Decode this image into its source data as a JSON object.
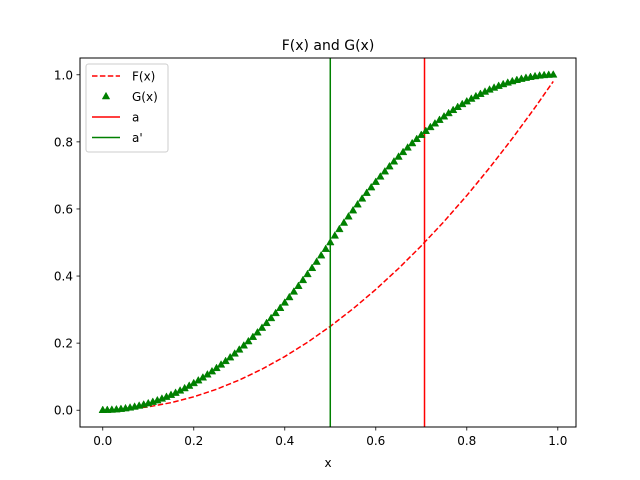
{
  "chart_data": {
    "type": "line",
    "title": "F(x) and G(x)",
    "xlabel": "x",
    "ylabel": "",
    "xlim": [
      -0.05,
      1.04
    ],
    "ylim": [
      -0.05,
      1.05
    ],
    "grid": false,
    "legend_position": "top-left",
    "xticks": [
      0.0,
      0.2,
      0.4,
      0.6,
      0.8,
      1.0
    ],
    "xtick_labels": [
      "0.0",
      "0.2",
      "0.4",
      "0.6",
      "0.8",
      "1.0"
    ],
    "yticks": [
      0.0,
      0.2,
      0.4,
      0.6,
      0.8,
      1.0
    ],
    "ytick_labels": [
      "0.0",
      "0.2",
      "0.4",
      "0.6",
      "0.8",
      "1.0"
    ],
    "series": [
      {
        "name": "F(x)",
        "kind": "line",
        "style": "dashed",
        "color": "#ff0000",
        "x": [
          0.0,
          0.05,
          0.1,
          0.15,
          0.2,
          0.25,
          0.3,
          0.35,
          0.4,
          0.45,
          0.5,
          0.55,
          0.6,
          0.65,
          0.7,
          0.75,
          0.8,
          0.85,
          0.9,
          0.95,
          0.99
        ],
        "y": [
          0.0,
          0.0025,
          0.01,
          0.0225,
          0.04,
          0.0625,
          0.09,
          0.1225,
          0.16,
          0.2025,
          0.25,
          0.3025,
          0.36,
          0.4225,
          0.49,
          0.5625,
          0.64,
          0.7225,
          0.81,
          0.9025,
          0.9801
        ]
      },
      {
        "name": "G(x)",
        "kind": "scatter",
        "marker": "triangle-up",
        "color": "#008000",
        "x": [
          0.0,
          0.01,
          0.02,
          0.03,
          0.04,
          0.05,
          0.06,
          0.07,
          0.08,
          0.09,
          0.1,
          0.11,
          0.12,
          0.13,
          0.14,
          0.15,
          0.16,
          0.17,
          0.18,
          0.19,
          0.2,
          0.21,
          0.22,
          0.23,
          0.24,
          0.25,
          0.26,
          0.27,
          0.28,
          0.29,
          0.3,
          0.31,
          0.32,
          0.33,
          0.34,
          0.35,
          0.36,
          0.37,
          0.38,
          0.39,
          0.4,
          0.41,
          0.42,
          0.43,
          0.44,
          0.45,
          0.46,
          0.47,
          0.48,
          0.49,
          0.5,
          0.51,
          0.52,
          0.53,
          0.54,
          0.55,
          0.56,
          0.57,
          0.58,
          0.59,
          0.6,
          0.61,
          0.62,
          0.63,
          0.64,
          0.65,
          0.66,
          0.67,
          0.68,
          0.69,
          0.7,
          0.71,
          0.72,
          0.73,
          0.74,
          0.75,
          0.76,
          0.77,
          0.78,
          0.79,
          0.8,
          0.81,
          0.82,
          0.83,
          0.84,
          0.85,
          0.86,
          0.87,
          0.88,
          0.89,
          0.9,
          0.91,
          0.92,
          0.93,
          0.94,
          0.95,
          0.96,
          0.97,
          0.98,
          0.99
        ],
        "y": [
          0.0,
          0.0002,
          0.0008,
          0.0018,
          0.0032,
          0.005,
          0.0072,
          0.0098,
          0.0128,
          0.0162,
          0.02,
          0.0242,
          0.0288,
          0.0338,
          0.0392,
          0.045,
          0.0512,
          0.0578,
          0.0648,
          0.0722,
          0.08,
          0.0882,
          0.0968,
          0.1058,
          0.1152,
          0.125,
          0.1352,
          0.1458,
          0.1568,
          0.1682,
          0.18,
          0.1922,
          0.2048,
          0.2178,
          0.2312,
          0.245,
          0.2592,
          0.2738,
          0.2888,
          0.3042,
          0.32,
          0.3362,
          0.3528,
          0.3698,
          0.3872,
          0.405,
          0.4232,
          0.4418,
          0.4608,
          0.4802,
          0.5,
          0.5198,
          0.5392,
          0.5582,
          0.5768,
          0.595,
          0.6128,
          0.6302,
          0.6472,
          0.6638,
          0.68,
          0.6958,
          0.7112,
          0.7262,
          0.7408,
          0.755,
          0.7688,
          0.7822,
          0.7952,
          0.8078,
          0.82,
          0.8318,
          0.8432,
          0.8542,
          0.8648,
          0.875,
          0.8848,
          0.8942,
          0.9032,
          0.9118,
          0.92,
          0.9278,
          0.9352,
          0.9422,
          0.9488,
          0.955,
          0.9608,
          0.9662,
          0.9712,
          0.9758,
          0.98,
          0.9838,
          0.9872,
          0.9902,
          0.9928,
          0.995,
          0.9968,
          0.9982,
          0.9992,
          0.9998
        ]
      },
      {
        "name": "a",
        "kind": "vline",
        "color": "#ff0000",
        "x": 0.7071
      },
      {
        "name": "a'",
        "kind": "vline",
        "color": "#008000",
        "x": 0.5
      }
    ]
  }
}
